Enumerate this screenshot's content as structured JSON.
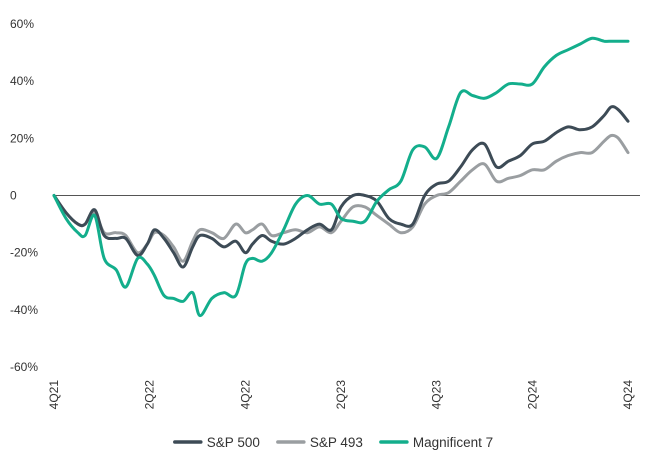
{
  "chart_data": {
    "type": "line",
    "title": "",
    "xlabel": "",
    "ylabel": "",
    "y_unit": "%",
    "ylim": [
      -60,
      60
    ],
    "y_ticks": [
      {
        "value": 60,
        "label": "60%"
      },
      {
        "value": 40,
        "label": "40%"
      },
      {
        "value": 20,
        "label": "20%"
      },
      {
        "value": 0,
        "label": "0"
      },
      {
        "value": -20,
        "label": "-20%"
      },
      {
        "value": -40,
        "label": "-40%"
      },
      {
        "value": -60,
        "label": "-60%"
      }
    ],
    "xlim": [
      0,
      12
    ],
    "x_ticks": [
      {
        "value": 0,
        "label": "4Q21"
      },
      {
        "value": 2,
        "label": "2Q22"
      },
      {
        "value": 4,
        "label": "4Q22"
      },
      {
        "value": 6,
        "label": "2Q23"
      },
      {
        "value": 8,
        "label": "4Q23"
      },
      {
        "value": 10,
        "label": "2Q24"
      },
      {
        "value": 12,
        "label": "4Q24"
      }
    ],
    "legend_position": "bottom-center",
    "zero_line": true,
    "series": [
      {
        "name": "S&P 500",
        "color": "#3d4b56",
        "x": [
          0,
          0.25,
          0.5,
          0.65,
          0.85,
          1.05,
          1.3,
          1.5,
          1.75,
          1.95,
          2.1,
          2.3,
          2.5,
          2.7,
          2.9,
          3.05,
          3.3,
          3.55,
          3.8,
          4.0,
          4.15,
          4.35,
          4.55,
          4.8,
          5.05,
          5.3,
          5.55,
          5.8,
          6.0,
          6.25,
          6.5,
          6.75,
          7.0,
          7.25,
          7.5,
          7.75,
          8.0,
          8.25,
          8.5,
          8.75,
          9.0,
          9.25,
          9.5,
          9.75,
          10.0,
          10.25,
          10.5,
          10.75,
          11.0,
          11.25,
          11.5,
          11.65,
          11.8,
          12.0
        ],
        "values": [
          0,
          -6,
          -10,
          -10,
          -5,
          -14,
          -15,
          -15,
          -21,
          -17,
          -12,
          -15,
          -20,
          -25,
          -18,
          -14,
          -15,
          -18,
          -16,
          -20,
          -17,
          -14,
          -16,
          -17,
          -15,
          -12,
          -10,
          -12,
          -4,
          0,
          0,
          -2,
          -8,
          -10,
          -10,
          0,
          4,
          5,
          10,
          16,
          18,
          10,
          12,
          14,
          18,
          19,
          22,
          24,
          23,
          24,
          28,
          31,
          30,
          26
        ]
      },
      {
        "name": "S&P 493",
        "color": "#9a9ea1",
        "x": [
          0,
          0.25,
          0.5,
          0.65,
          0.85,
          1.05,
          1.3,
          1.5,
          1.75,
          1.95,
          2.1,
          2.3,
          2.5,
          2.7,
          2.9,
          3.05,
          3.3,
          3.55,
          3.8,
          4.0,
          4.15,
          4.35,
          4.55,
          4.8,
          5.05,
          5.3,
          5.55,
          5.8,
          6.0,
          6.25,
          6.5,
          6.75,
          7.0,
          7.25,
          7.5,
          7.75,
          8.0,
          8.25,
          8.5,
          8.75,
          9.0,
          9.25,
          9.5,
          9.75,
          10.0,
          10.25,
          10.5,
          10.75,
          11.0,
          11.25,
          11.5,
          11.65,
          11.8,
          12.0
        ],
        "values": [
          0,
          -6,
          -10,
          -10,
          -6,
          -13,
          -13,
          -14,
          -20,
          -17,
          -13,
          -14,
          -18,
          -23,
          -16,
          -12,
          -13,
          -15,
          -10,
          -13,
          -12,
          -10,
          -14,
          -13,
          -12,
          -13,
          -11,
          -13,
          -9,
          -4,
          -4,
          -7,
          -10,
          -13,
          -11,
          -3,
          0,
          1,
          5,
          9,
          11,
          5,
          6,
          7,
          9,
          9,
          12,
          14,
          15,
          15,
          19,
          21,
          20,
          15
        ]
      },
      {
        "name": "Magnificent 7",
        "color": "#13ae8c",
        "x": [
          0,
          0.25,
          0.5,
          0.65,
          0.85,
          1.05,
          1.3,
          1.5,
          1.75,
          1.95,
          2.1,
          2.3,
          2.5,
          2.7,
          2.9,
          3.05,
          3.3,
          3.55,
          3.8,
          4.0,
          4.15,
          4.35,
          4.55,
          4.8,
          5.05,
          5.3,
          5.55,
          5.8,
          6.0,
          6.25,
          6.5,
          6.75,
          7.0,
          7.25,
          7.5,
          7.75,
          8.0,
          8.25,
          8.5,
          8.75,
          9.0,
          9.25,
          9.5,
          9.75,
          10.0,
          10.25,
          10.5,
          10.75,
          11.0,
          11.25,
          11.5,
          11.65,
          11.8,
          12.0
        ],
        "values": [
          0,
          -8,
          -13,
          -14,
          -7,
          -22,
          -26,
          -32,
          -22,
          -24,
          -28,
          -35,
          -36,
          -37,
          -34,
          -42,
          -36,
          -34,
          -35,
          -24,
          -22,
          -23,
          -20,
          -12,
          -3,
          0,
          -3,
          -3,
          -8,
          -9,
          -9,
          -2,
          2,
          5,
          16,
          17,
          13,
          24,
          36,
          35,
          34,
          36,
          39,
          39,
          39,
          45,
          49,
          51,
          53,
          55,
          54,
          54,
          54,
          54
        ]
      }
    ]
  }
}
